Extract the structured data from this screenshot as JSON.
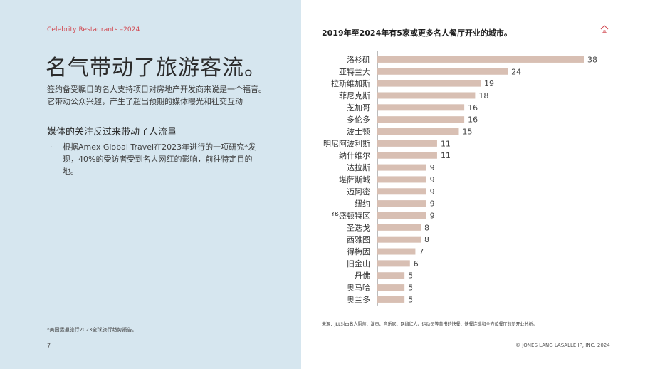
{
  "header": {
    "eyebrow": "Celebrity Restaurants –2024"
  },
  "main": {
    "title": "名气带动了旅游客流。",
    "intro": "签约备受瞩目的名人支持项目对房地产开发商来说是一个福音。它带动公众兴趣，产生了超出预期的媒体曝光和社交互动",
    "subhead": "媒体的关注反过来带动了人流量",
    "bullet_symbol": "·",
    "bullet": "根据Amex Global Travel在2023年进行的一项研究*发现，40%的受访者受到名人网红的影响，前往特定目的地。"
  },
  "footer": {
    "footnote": "*美国运通旅行2023全球旅行趋势报告。",
    "page_number": "7",
    "copyright": "© JONES LANG LASALLE IP, INC. 2024"
  },
  "chart_header": {
    "title": "2019年至2024年有5家或更多名人餐厅开业的城市。",
    "source": "来源：JLL对由名人厨师、演员、音乐家、网络红人、运动员等背书的快餐、快餐连锁和全方位餐厅的新开业分析。"
  },
  "icons": {
    "home": "home-icon"
  },
  "colors": {
    "left_panel": "#d6e6ef",
    "accent_red": "#d24a52",
    "bar": "#d8bfb3"
  },
  "chart_data": {
    "type": "bar",
    "orientation": "horizontal",
    "title": "2019年至2024年有5家或更多名人餐厅开业的城市。",
    "categories": [
      "洛杉矶",
      "亚特兰大",
      "拉斯维加斯",
      "菲尼克斯",
      "芝加哥",
      "多伦多",
      "波士顿",
      "明尼阿波利斯",
      "纳什维尔",
      "达拉斯",
      "堪萨斯城",
      "迈阿密",
      "纽约",
      "华盛顿特区",
      "圣迭戈",
      "西雅图",
      "得梅因",
      "旧金山",
      "丹佛",
      "奥马哈",
      "奥兰多"
    ],
    "values": [
      38,
      24,
      19,
      18,
      16,
      16,
      15,
      11,
      11,
      9,
      9,
      9,
      9,
      9,
      8,
      8,
      7,
      6,
      5,
      5,
      5
    ],
    "xlim": [
      0,
      38
    ],
    "grid": false,
    "legend": "none",
    "data_labels": true
  }
}
